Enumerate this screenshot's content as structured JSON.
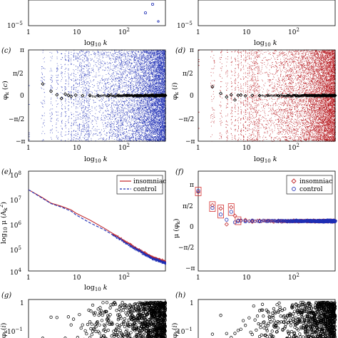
{
  "figure_panels": [
    "(c)",
    "(d)",
    "(e)",
    "(f)",
    "(g)",
    "(h)"
  ],
  "chart_data": [
    {
      "panel": "top-left",
      "type": "scatter",
      "xlabel": "log10 k",
      "x_ticks": [
        "1",
        "10",
        "10^2"
      ],
      "y_ticks": [
        "10^-5"
      ],
      "series": [
        {
          "color": "#1a2fb0",
          "x": [
            430,
            560
          ],
          "y": [
            0.9,
            1.1
          ]
        }
      ]
    },
    {
      "panel": "top-right",
      "type": "scatter",
      "xlabel": "log10 k",
      "x_ticks": [
        "1",
        "10",
        "10^2"
      ],
      "y_ticks": [
        "10^-5"
      ],
      "series": [
        {
          "color": "#c0262a",
          "x": [],
          "y": []
        }
      ]
    },
    {
      "panel": "(c)",
      "type": "scatter",
      "ylabel": "φk (c)",
      "xlabel": "log10 k",
      "y_ticks": [
        "π",
        "π/2",
        "0",
        "−π/2",
        "−π"
      ],
      "x_ticks": [
        "1",
        "10",
        "10^2"
      ],
      "xlim": [
        1,
        800
      ],
      "ylim": [
        -3.1416,
        3.1416
      ],
      "point_color": "#1f2fb5",
      "mean_x": [
        2,
        3,
        4,
        5,
        6,
        7,
        8,
        10,
        14,
        20,
        30,
        50,
        80,
        120,
        200,
        300,
        500,
        800
      ],
      "mean_y": [
        0.8,
        0.3,
        0.05,
        -0.2,
        0.1,
        0.02,
        -0.05,
        0.03,
        -0.01,
        0.02,
        0.0,
        0.01,
        -0.01,
        0.0,
        0.01,
        0.0,
        0.0,
        0.0
      ]
    },
    {
      "panel": "(d)",
      "type": "scatter",
      "ylabel": "φk (i)",
      "xlabel": "log10 k",
      "y_ticks": [
        "π",
        "π/2",
        "0",
        "−π/2",
        "−π"
      ],
      "x_ticks": [
        "1",
        "10",
        "10^2"
      ],
      "xlim": [
        1,
        800
      ],
      "ylim": [
        -3.1416,
        3.1416
      ],
      "point_color": "#b5141a",
      "mean_x": [
        2,
        3,
        4,
        5,
        6,
        7,
        8,
        10,
        14,
        20,
        30,
        50,
        80,
        120,
        200,
        300,
        500,
        800
      ],
      "mean_y": [
        0.6,
        0.15,
        -0.1,
        0.05,
        -0.3,
        0.02,
        0.04,
        -0.02,
        0.01,
        0.0,
        0.02,
        -0.01,
        0.0,
        0.01,
        0.0,
        0.0,
        0.0,
        0.0
      ]
    },
    {
      "panel": "(e)",
      "type": "line",
      "ylabel": "log10 μ (A²k)",
      "xlabel": "log10 k",
      "y_ticks": [
        "10^8",
        "10^7",
        "10^6",
        "10^5",
        "10^4"
      ],
      "x_ticks": [
        "1",
        "10",
        "10^2"
      ],
      "xlim": [
        1,
        800
      ],
      "ylim": [
        10000,
        100000000
      ],
      "legend_position": "top-right",
      "series": [
        {
          "name": "insomniac",
          "color": "#c0262a",
          "style": "solid",
          "x": [
            1,
            2,
            3,
            5,
            8,
            10,
            20,
            40,
            100,
            200,
            400,
            800
          ],
          "y": [
            18000000,
            8500000,
            5200000,
            3900000,
            2800000,
            2100000,
            1100000,
            520000,
            180000,
            80000,
            38000,
            24000
          ]
        },
        {
          "name": "control",
          "color": "#1f2fb5",
          "style": "dashed",
          "x": [
            1,
            2,
            3,
            5,
            8,
            10,
            20,
            40,
            100,
            200,
            400,
            800
          ],
          "y": [
            18000000,
            8000000,
            5000000,
            3600000,
            2500000,
            1800000,
            850000,
            450000,
            160000,
            72000,
            34000,
            22000
          ]
        }
      ]
    },
    {
      "panel": "(f)",
      "type": "scatter",
      "ylabel": "μ (φk)",
      "xlabel": "",
      "y_ticks": [
        "π",
        "π/2",
        "0",
        "−π/2",
        "−π"
      ],
      "x_ticks": [
        "1",
        "10",
        "10^2"
      ],
      "xlim": [
        1,
        800
      ],
      "ylim": [
        -3.1416,
        3.1416
      ],
      "legend_position": "top-right",
      "series": [
        {
          "name": "insomniac",
          "color": "#c0262a",
          "marker": "diamond",
          "x": [
            1,
            2,
            3,
            4,
            5,
            6,
            7,
            8,
            10,
            14,
            20,
            30,
            50,
            80,
            120,
            200,
            300,
            500,
            800
          ],
          "y": [
            2.2,
            1.2,
            0.95,
            -0.25,
            1.05,
            0.4,
            0.05,
            0.02,
            0.08,
            -0.05,
            0.03,
            0.02,
            -0.02,
            0.01,
            0.03,
            -0.02,
            0.01,
            0.0,
            0.02
          ]
        },
        {
          "name": "control",
          "color": "#1f2fb5",
          "marker": "circle",
          "x": [
            1,
            2,
            3,
            4,
            5,
            6,
            7,
            8,
            10,
            14,
            20,
            30,
            50,
            80,
            120,
            200,
            300,
            500,
            800
          ],
          "y": [
            2.3,
            1.0,
            0.5,
            0.1,
            0.7,
            -0.1,
            0.0,
            0.05,
            -0.03,
            0.04,
            -0.02,
            0.01,
            0.02,
            -0.01,
            0.0,
            0.02,
            -0.01,
            0.01,
            0.0
          ]
        }
      ],
      "boxes_x": [
        1,
        2,
        3,
        5,
        7
      ]
    },
    {
      "panel": "(g)",
      "type": "scatter",
      "ylabel": "φk (i)",
      "xlabel": "",
      "y_ticks": [
        "1",
        "10^-1"
      ],
      "xlim": [
        1,
        800
      ],
      "point_color": "#000000"
    },
    {
      "panel": "(h)",
      "type": "scatter",
      "ylabel": "φk (i)",
      "xlabel": "",
      "y_ticks": [
        "1",
        "10^-1"
      ],
      "xlim": [
        1,
        800
      ],
      "point_color": "#000000"
    }
  ]
}
